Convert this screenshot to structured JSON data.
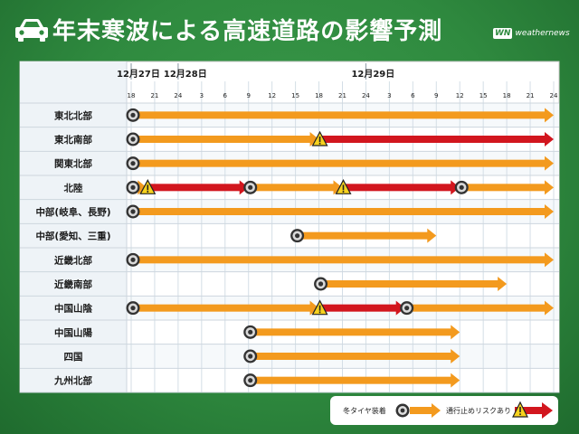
{
  "header": {
    "title": "年末寒波による高速道路の影響予測",
    "brand_logo": "WN",
    "brand_name": "weathernews"
  },
  "colors": {
    "caution": "#f39a1e",
    "closure": "#d2161e",
    "background": "#2f8a3f"
  },
  "legend": {
    "caution_label": "冬タイヤ装着",
    "closure_label": "通行止めリスクあり"
  },
  "chart_data": {
    "type": "timeline",
    "title": "年末寒波による高速道路の影響予測",
    "days": [
      {
        "label": "12月27日",
        "start_hour": 18
      },
      {
        "label": "12月28日",
        "start_hour": 24
      },
      {
        "label": "12月29日",
        "start_hour": 48
      }
    ],
    "hour_range": [
      18,
      72
    ],
    "ticks": [
      {
        "hour": 18,
        "label": "18"
      },
      {
        "hour": 21,
        "label": "21"
      },
      {
        "hour": 24,
        "label": "24"
      },
      {
        "hour": 27,
        "label": "3"
      },
      {
        "hour": 30,
        "label": "6"
      },
      {
        "hour": 33,
        "label": "9"
      },
      {
        "hour": 36,
        "label": "12"
      },
      {
        "hour": 39,
        "label": "15"
      },
      {
        "hour": 42,
        "label": "18"
      },
      {
        "hour": 45,
        "label": "21"
      },
      {
        "hour": 48,
        "label": "24"
      },
      {
        "hour": 51,
        "label": "3"
      },
      {
        "hour": 54,
        "label": "6"
      },
      {
        "hour": 57,
        "label": "9"
      },
      {
        "hour": 60,
        "label": "12"
      },
      {
        "hour": 63,
        "label": "15"
      },
      {
        "hour": 66,
        "label": "18"
      },
      {
        "hour": 69,
        "label": "21"
      },
      {
        "hour": 72,
        "label": "24"
      }
    ],
    "regions": [
      {
        "name": "東北北部",
        "segments": [
          {
            "type": "caution",
            "start": 18,
            "end": 72
          }
        ]
      },
      {
        "name": "東北南部",
        "segments": [
          {
            "type": "caution",
            "start": 18,
            "end": 42
          },
          {
            "type": "closure",
            "start": 42,
            "end": 72
          }
        ]
      },
      {
        "name": "関東北部",
        "segments": [
          {
            "type": "caution",
            "start": 18,
            "end": 72
          }
        ]
      },
      {
        "name": "北陸",
        "segments": [
          {
            "type": "caution",
            "start": 18,
            "end": 20
          },
          {
            "type": "closure",
            "start": 20,
            "end": 33
          },
          {
            "type": "caution",
            "start": 33,
            "end": 45
          },
          {
            "type": "closure",
            "start": 45,
            "end": 60
          },
          {
            "type": "caution",
            "start": 60,
            "end": 72
          }
        ]
      },
      {
        "name": "中部(岐阜、長野)",
        "segments": [
          {
            "type": "caution",
            "start": 18,
            "end": 72
          }
        ]
      },
      {
        "name": "中部(愛知、三重)",
        "segments": [
          {
            "type": "caution",
            "start": 39,
            "end": 57
          }
        ]
      },
      {
        "name": "近畿北部",
        "segments": [
          {
            "type": "caution",
            "start": 18,
            "end": 72
          }
        ]
      },
      {
        "name": "近畿南部",
        "segments": [
          {
            "type": "caution",
            "start": 42,
            "end": 66
          }
        ]
      },
      {
        "name": "中国山陰",
        "segments": [
          {
            "type": "caution",
            "start": 18,
            "end": 42
          },
          {
            "type": "closure",
            "start": 42,
            "end": 53
          },
          {
            "type": "caution",
            "start": 53,
            "end": 72
          }
        ]
      },
      {
        "name": "中国山陽",
        "segments": [
          {
            "type": "caution",
            "start": 33,
            "end": 60
          }
        ]
      },
      {
        "name": "四国",
        "segments": [
          {
            "type": "caution",
            "start": 33,
            "end": 60
          }
        ]
      },
      {
        "name": "九州北部",
        "segments": [
          {
            "type": "caution",
            "start": 33,
            "end": 60
          }
        ]
      }
    ]
  }
}
